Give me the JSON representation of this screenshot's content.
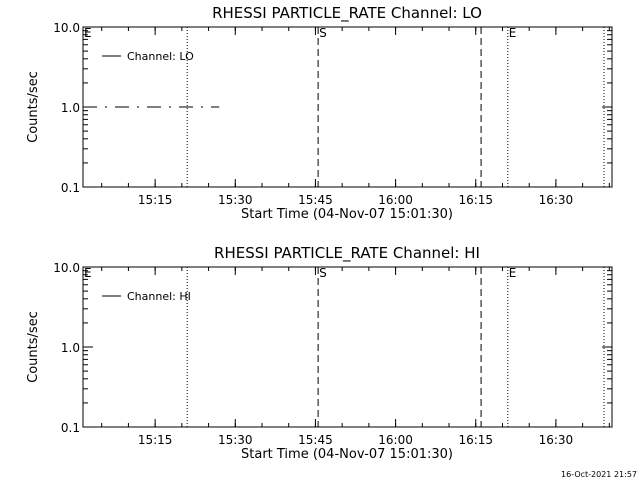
{
  "footer": {
    "timestamp": "16-Oct-2021 21:57"
  },
  "chart_data": [
    {
      "type": "line",
      "title": "RHESSI PARTICLE_RATE Channel: LO",
      "xlabel": "Start Time (04-Nov-07 15:01:30)",
      "ylabel": "Counts/sec",
      "y_scale": "log",
      "ylim": [
        0.1,
        10.0
      ],
      "y_ticks": [
        {
          "value": 0.1,
          "label": "0.1"
        },
        {
          "value": 1.0,
          "label": "1.0"
        },
        {
          "value": 10.0,
          "label": "10.0"
        }
      ],
      "xlim": [
        "15:01:30",
        "16:40:30"
      ],
      "x_ticks": [
        {
          "time": "15:15",
          "label": "15:15"
        },
        {
          "time": "15:30",
          "label": "15:30"
        },
        {
          "time": "15:45",
          "label": "15:45"
        },
        {
          "time": "16:00",
          "label": "16:00"
        },
        {
          "time": "16:15",
          "label": "16:15"
        },
        {
          "time": "16:30",
          "label": "16:30"
        }
      ],
      "markers": [
        {
          "time": "15:01:30",
          "style": "dotted",
          "label": "E"
        },
        {
          "time": "15:21",
          "style": "dotted",
          "label": ""
        },
        {
          "time": "15:45:30",
          "style": "dashed",
          "label": "S"
        },
        {
          "time": "16:16",
          "style": "dashed",
          "label": ""
        },
        {
          "time": "16:21",
          "style": "dotted",
          "label": "E"
        },
        {
          "time": "16:39",
          "style": "dotted",
          "label": ""
        }
      ],
      "series": [
        {
          "name": "Channel: LO",
          "x": [
            "15:01:30",
            "15:27"
          ],
          "y": [
            1.0,
            1.0
          ],
          "style": "dash-dot"
        }
      ],
      "legend": {
        "position": "top-left",
        "entries": [
          "Channel: LO"
        ]
      },
      "grid": false
    },
    {
      "type": "line",
      "title": "RHESSI PARTICLE_RATE Channel: HI",
      "xlabel": "Start Time (04-Nov-07 15:01:30)",
      "ylabel": "Counts/sec",
      "y_scale": "log",
      "ylim": [
        0.1,
        10.0
      ],
      "y_ticks": [
        {
          "value": 0.1,
          "label": "0.1"
        },
        {
          "value": 1.0,
          "label": "1.0"
        },
        {
          "value": 10.0,
          "label": "10.0"
        }
      ],
      "xlim": [
        "15:01:30",
        "16:40:30"
      ],
      "x_ticks": [
        {
          "time": "15:15",
          "label": "15:15"
        },
        {
          "time": "15:30",
          "label": "15:30"
        },
        {
          "time": "15:45",
          "label": "15:45"
        },
        {
          "time": "16:00",
          "label": "16:00"
        },
        {
          "time": "16:15",
          "label": "16:15"
        },
        {
          "time": "16:30",
          "label": "16:30"
        }
      ],
      "markers": [
        {
          "time": "15:01:30",
          "style": "dotted",
          "label": "E"
        },
        {
          "time": "15:21",
          "style": "dotted",
          "label": ""
        },
        {
          "time": "15:45:30",
          "style": "dashed",
          "label": "S"
        },
        {
          "time": "16:16",
          "style": "dashed",
          "label": ""
        },
        {
          "time": "16:21",
          "style": "dotted",
          "label": "E"
        },
        {
          "time": "16:39",
          "style": "dotted",
          "label": ""
        }
      ],
      "series": [
        {
          "name": "Channel: HI",
          "x": [],
          "y": [],
          "style": "solid"
        }
      ],
      "legend": {
        "position": "top-left",
        "entries": [
          "Channel: HI"
        ]
      },
      "grid": false
    }
  ]
}
